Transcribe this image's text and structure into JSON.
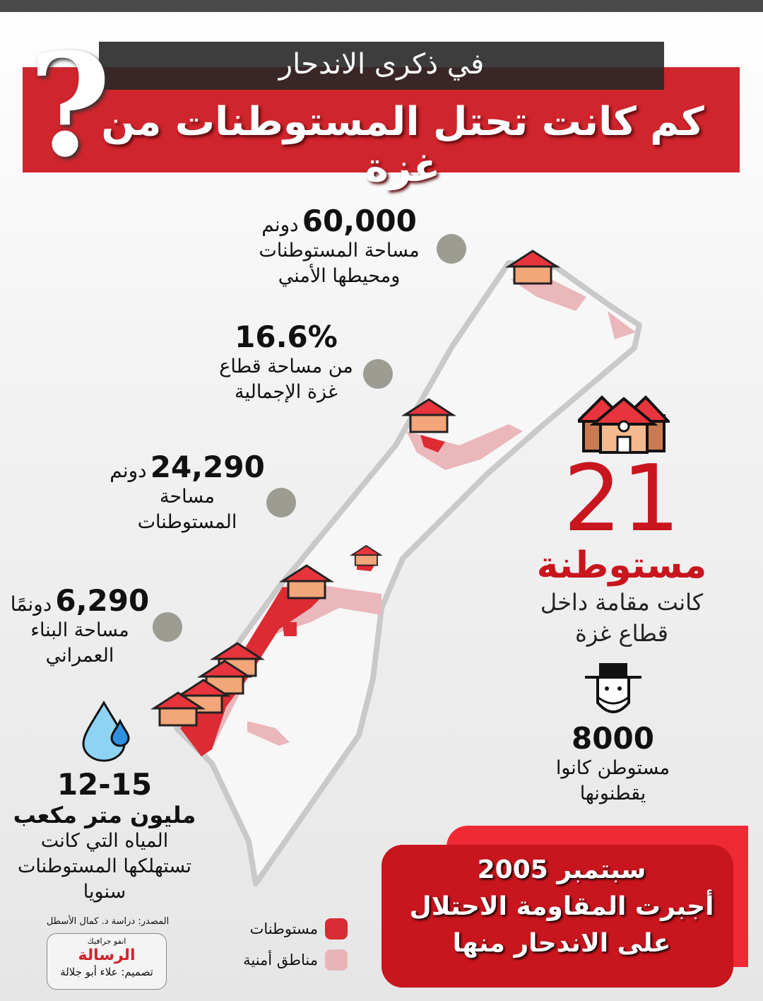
{
  "header": {
    "subtitle": "في ذكرى الاندحار",
    "title": "كم كانت تحتل المستوطنات من غزة",
    "question_mark": "?"
  },
  "stats_left": [
    {
      "value": "60,000",
      "unit": "دونم",
      "line1": "مساحة المستوطنات",
      "line2": "ومحيطها الأمني"
    },
    {
      "value": "16.6%",
      "unit": "",
      "line1": "من مساحة قطاع",
      "line2": "غزة الإجمالية"
    },
    {
      "value": "24,290",
      "unit": "دونم",
      "line1": "مساحة",
      "line2": "المستوطنات"
    },
    {
      "value": "6,290",
      "unit": "دونمًا",
      "line1": "مساحة البناء",
      "line2": "العمراني"
    }
  ],
  "water": {
    "value": "12-15",
    "unit": "مليون متر مكعب",
    "line1": "المياه التي كانت",
    "line2": "تستهلكها المستوطنات",
    "line3": "سنويا",
    "icon": "water-drop-icon"
  },
  "settlements": {
    "value": "21",
    "label": "مستوطنة",
    "line1": "كانت مقامة داخل",
    "line2": "قطاع غزة",
    "icon": "houses-icon"
  },
  "settlers": {
    "value": "8000",
    "line1": "مستوطن كانوا",
    "line2": "يقطنونها",
    "icon": "settler-face-icon"
  },
  "legend": [
    {
      "label": "مستوطنات",
      "color": "#d92b34"
    },
    {
      "label": "مناطق أمنية",
      "color": "#e8b4b8"
    }
  ],
  "bottom_box": {
    "line1": "سبتمبر 2005",
    "line2": "أجبرت المقاومة الاحتلال",
    "line3": "على الاندحار منها"
  },
  "credits": {
    "source": "المصدر: دراسة د. كمال الأسطل",
    "infographic": "انفو جرافيك",
    "logo": "الرسالة",
    "design": "تصميم: علاء أبو جلالة"
  },
  "colors": {
    "accent_red": "#d0252d",
    "dark": "#4a4a4a",
    "settlement_red": "#d92b34",
    "security_pink": "#e8b4b8",
    "dot_grey": "#9c9c92"
  }
}
